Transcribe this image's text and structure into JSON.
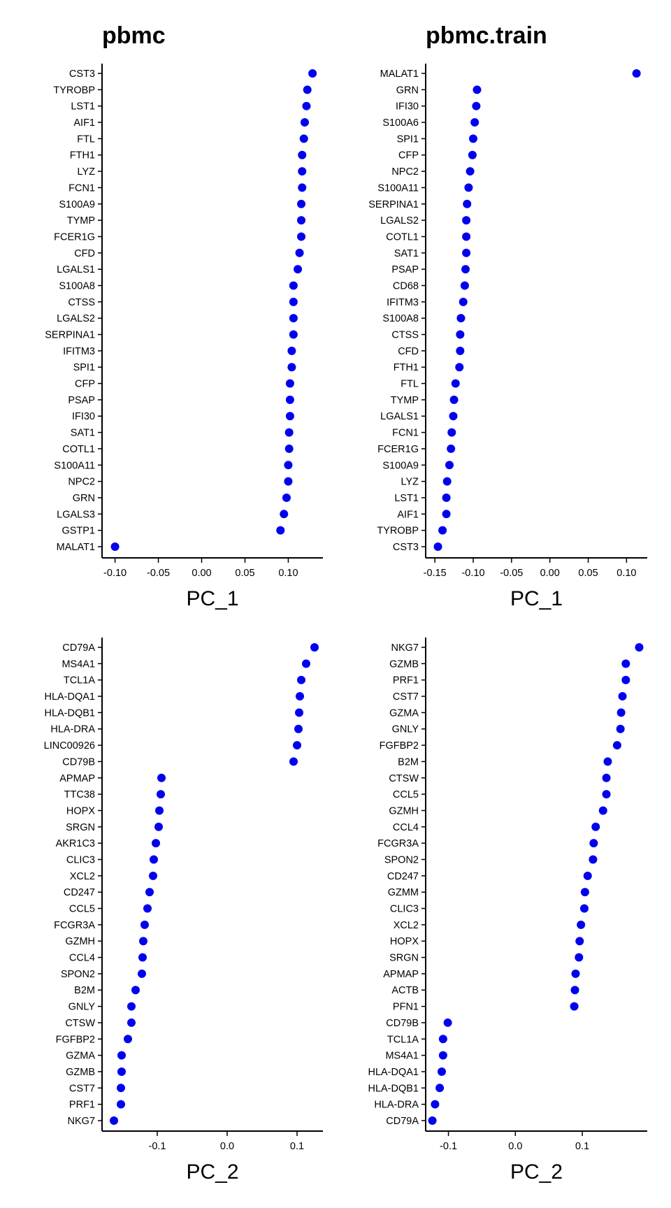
{
  "chart_data": [
    {
      "type": "scatter",
      "title": "pbmc",
      "xlabel": "PC_1",
      "ylabel": "",
      "xlim": [
        -0.115,
        0.14
      ],
      "xticks": [
        "-0.10",
        "-0.05",
        "0.00",
        "0.05",
        "0.10"
      ],
      "xtick_values": [
        -0.1,
        -0.05,
        0,
        0.05,
        0.1
      ],
      "grid": false,
      "point_color": "#0000ee",
      "genes": [
        "CST3",
        "TYROBP",
        "LST1",
        "AIF1",
        "FTL",
        "FTH1",
        "LYZ",
        "FCN1",
        "S100A9",
        "TYMP",
        "FCER1G",
        "CFD",
        "LGALS1",
        "S100A8",
        "CTSS",
        "LGALS2",
        "SERPINA1",
        "IFITM3",
        "SPI1",
        "CFP",
        "PSAP",
        "IFI30",
        "SAT1",
        "COTL1",
        "S100A11",
        "NPC2",
        "GRN",
        "LGALS3",
        "GSTP1",
        "MALAT1"
      ],
      "values": [
        0.128,
        0.122,
        0.121,
        0.119,
        0.118,
        0.116,
        0.116,
        0.116,
        0.115,
        0.115,
        0.115,
        0.113,
        0.111,
        0.106,
        0.106,
        0.106,
        0.106,
        0.104,
        0.104,
        0.102,
        0.102,
        0.102,
        0.101,
        0.101,
        0.1,
        0.1,
        0.098,
        0.095,
        0.091,
        -0.1
      ]
    },
    {
      "type": "scatter",
      "title": "pbmc.train",
      "xlabel": "PC_1",
      "ylabel": "",
      "xlim": [
        -0.162,
        0.127
      ],
      "xticks": [
        "-0.15",
        "-0.10",
        "-0.05",
        "0.00",
        "0.05",
        "0.10"
      ],
      "xtick_values": [
        -0.15,
        -0.1,
        -0.05,
        0,
        0.05,
        0.1
      ],
      "grid": false,
      "point_color": "#0000ee",
      "genes": [
        "MALAT1",
        "GRN",
        "IFI30",
        "S100A6",
        "SPI1",
        "CFP",
        "NPC2",
        "S100A11",
        "SERPINA1",
        "LGALS2",
        "COTL1",
        "SAT1",
        "PSAP",
        "CD68",
        "IFITM3",
        "S100A8",
        "CTSS",
        "CFD",
        "FTH1",
        "FTL",
        "TYMP",
        "LGALS1",
        "FCN1",
        "FCER1G",
        "S100A9",
        "LYZ",
        "LST1",
        "AIF1",
        "TYROBP",
        "CST3"
      ],
      "values": [
        0.113,
        -0.095,
        -0.096,
        -0.098,
        -0.1,
        -0.101,
        -0.104,
        -0.106,
        -0.108,
        -0.109,
        -0.109,
        -0.109,
        -0.11,
        -0.111,
        -0.113,
        -0.116,
        -0.117,
        -0.117,
        -0.118,
        -0.123,
        -0.125,
        -0.126,
        -0.128,
        -0.129,
        -0.131,
        -0.134,
        -0.135,
        -0.135,
        -0.14,
        -0.146
      ]
    },
    {
      "type": "scatter",
      "title": "",
      "xlabel": "PC_2",
      "ylabel": "",
      "xlim": [
        -0.179,
        0.137
      ],
      "xticks": [
        "-0.1",
        "0.0",
        "0.1"
      ],
      "xtick_values": [
        -0.1,
        0,
        0.1
      ],
      "grid": false,
      "point_color": "#0000ee",
      "genes": [
        "CD79A",
        "MS4A1",
        "TCL1A",
        "HLA-DQA1",
        "HLA-DQB1",
        "HLA-DRA",
        "LINC00926",
        "CD79B",
        "APMAP",
        "TTC38",
        "HOPX",
        "SRGN",
        "AKR1C3",
        "CLIC3",
        "XCL2",
        "CD247",
        "CCL5",
        "FCGR3A",
        "GZMH",
        "CCL4",
        "SPON2",
        "B2M",
        "GNLY",
        "CTSW",
        "FGFBP2",
        "GZMA",
        "GZMB",
        "CST7",
        "PRF1",
        "NKG7"
      ],
      "values": [
        0.125,
        0.113,
        0.106,
        0.104,
        0.103,
        0.102,
        0.1,
        0.095,
        -0.094,
        -0.095,
        -0.097,
        -0.098,
        -0.102,
        -0.105,
        -0.106,
        -0.111,
        -0.114,
        -0.118,
        -0.12,
        -0.121,
        -0.122,
        -0.131,
        -0.137,
        -0.137,
        -0.142,
        -0.151,
        -0.151,
        -0.152,
        -0.152,
        -0.162
      ]
    },
    {
      "type": "scatter",
      "title": "",
      "xlabel": "PC_2",
      "ylabel": "",
      "xlim": [
        -0.134,
        0.197
      ],
      "xticks": [
        "-0.1",
        "0.0",
        "0.1"
      ],
      "xtick_values": [
        -0.1,
        0,
        0.1
      ],
      "grid": false,
      "point_color": "#0000ee",
      "genes": [
        "NKG7",
        "GZMB",
        "PRF1",
        "CST7",
        "GZMA",
        "GNLY",
        "FGFBP2",
        "B2M",
        "CTSW",
        "CCL5",
        "GZMH",
        "CCL4",
        "FCGR3A",
        "SPON2",
        "CD247",
        "GZMM",
        "CLIC3",
        "XCL2",
        "HOPX",
        "SRGN",
        "APMAP",
        "ACTB",
        "PFN1",
        "CD79B",
        "TCL1A",
        "MS4A1",
        "HLA-DQA1",
        "HLA-DQB1",
        "HLA-DRA",
        "CD79A"
      ],
      "values": [
        0.185,
        0.165,
        0.165,
        0.16,
        0.158,
        0.157,
        0.152,
        0.138,
        0.136,
        0.136,
        0.131,
        0.12,
        0.117,
        0.116,
        0.108,
        0.104,
        0.103,
        0.098,
        0.096,
        0.095,
        0.09,
        0.089,
        0.088,
        -0.101,
        -0.108,
        -0.108,
        -0.11,
        -0.113,
        -0.12,
        -0.124
      ]
    }
  ]
}
